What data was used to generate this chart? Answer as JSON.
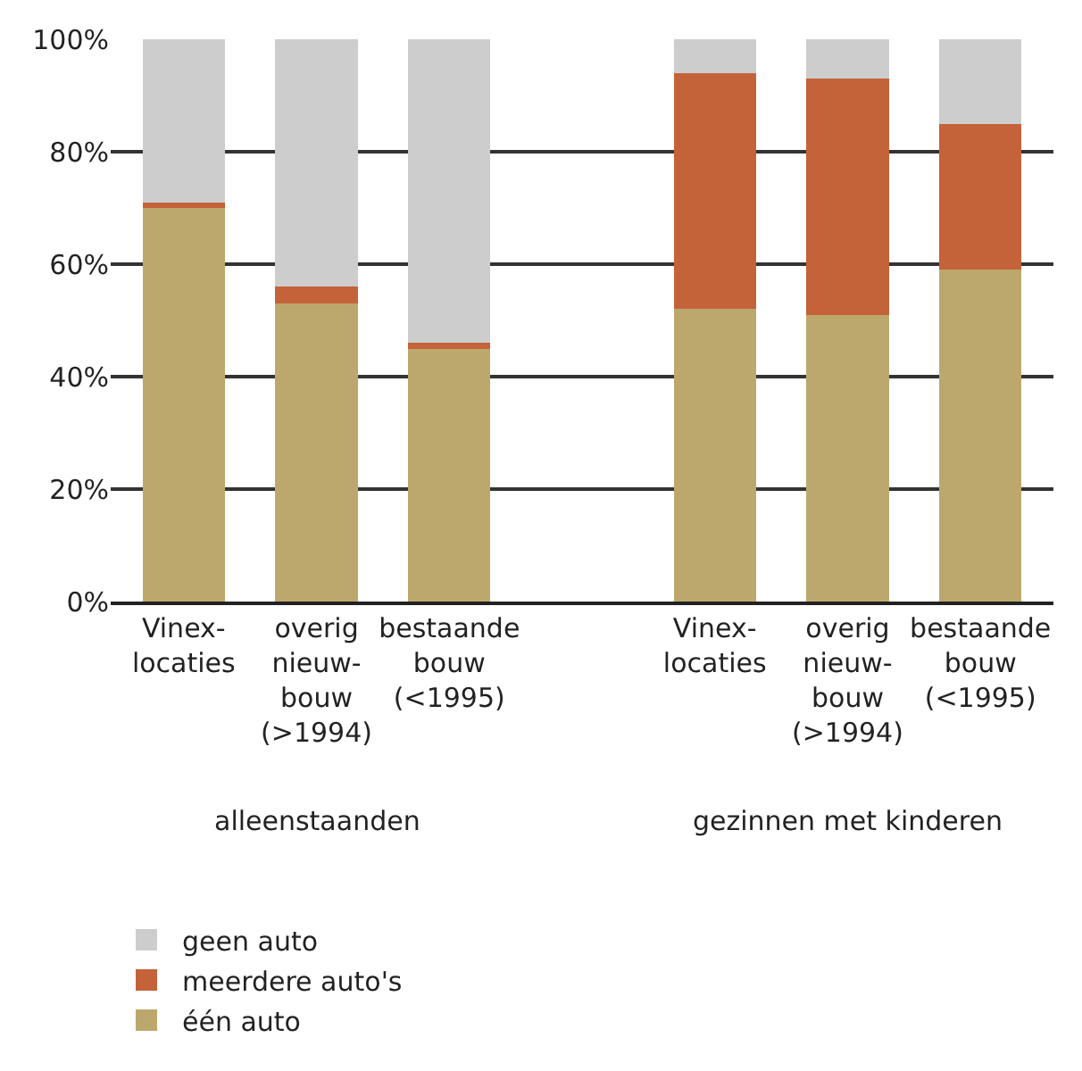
{
  "chart_data": {
    "type": "bar",
    "stacked": true,
    "categories": [
      "Vinex-\nlocaties",
      "overig\nnieuw-\nbouw\n(>1994)",
      "bestaande\nbouw\n(<1995)",
      null,
      "Vinex-\nlocaties",
      "overig\nnieuw-\nbouw\n(>1994)",
      "bestaande\nbouw\n(<1995)"
    ],
    "series": [
      {
        "name": "één auto",
        "color": "#bca86d",
        "values": [
          70,
          53,
          45,
          null,
          52,
          51,
          59
        ]
      },
      {
        "name": "meerdere auto's",
        "color": "#c4623a",
        "values": [
          1,
          3,
          1,
          null,
          42,
          42,
          26
        ]
      },
      {
        "name": "geen auto",
        "color": "#cdcdcd",
        "values": [
          29,
          44,
          54,
          null,
          6,
          7,
          15
        ]
      }
    ],
    "ylim": [
      0,
      100
    ],
    "yticks": [
      {
        "value": 0,
        "label": "0%"
      },
      {
        "value": 20,
        "label": "20%"
      },
      {
        "value": 40,
        "label": "40%"
      },
      {
        "value": 60,
        "label": "60%"
      },
      {
        "value": 80,
        "label": "80%"
      },
      {
        "value": 100,
        "label": "100%"
      }
    ],
    "grid": "y",
    "legend": "bottom",
    "annotations": [
      "alleenstaanden",
      "gezinnen met kinderen"
    ]
  }
}
